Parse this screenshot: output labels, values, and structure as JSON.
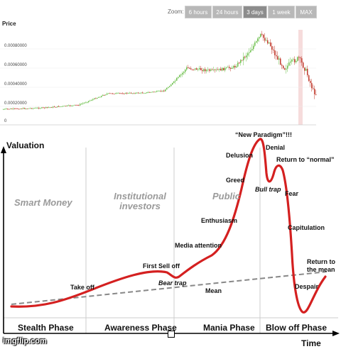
{
  "price_chart": {
    "zoom_label": "Zoom:",
    "zoom_buttons": [
      {
        "label": "6 hours",
        "active": false
      },
      {
        "label": "24 hours",
        "active": false
      },
      {
        "label": "3 days",
        "active": true
      },
      {
        "label": "1 week",
        "active": false
      },
      {
        "label": "MAX",
        "active": false
      }
    ],
    "title": "Price",
    "y_ticks": [
      "0.00080000",
      "0.00060000",
      "0.00040000",
      "0.00020000",
      "0"
    ],
    "colors": {
      "up": "#6bbf4a",
      "down": "#c0392b",
      "highlight": "#f6dcdc"
    }
  },
  "cycle_chart": {
    "y_axis_label": "Valuation",
    "x_axis_label": "Time",
    "eras": [
      "Smart Money",
      "Institutional investors",
      "Public"
    ],
    "phases": [
      "Stealth Phase",
      "Awareness Phase",
      "Mania Phase",
      "Blow off Phase"
    ],
    "annotations": {
      "new_paradigm": "“New Paradigm”!!!",
      "delusion": "Delusion",
      "denial": "Denial",
      "return_normal": "Return to “normal”",
      "greed": "Greed",
      "bull_trap": "Bull trap",
      "fear": "Fear",
      "enthusiasm": "Enthusiasm",
      "capitulation": "Capitulation",
      "media_attention": "Media attention",
      "first_sell_off": "First Sell off",
      "return_mean": "Return to the mean",
      "take_off": "Take off",
      "bear_trap": "Bear trap",
      "mean": "Mean",
      "despair": "Despair"
    },
    "colors": {
      "curve": "#d42020",
      "mean_line": "#888888",
      "divider": "#cccccc"
    }
  },
  "watermark": "imgflip.com"
}
